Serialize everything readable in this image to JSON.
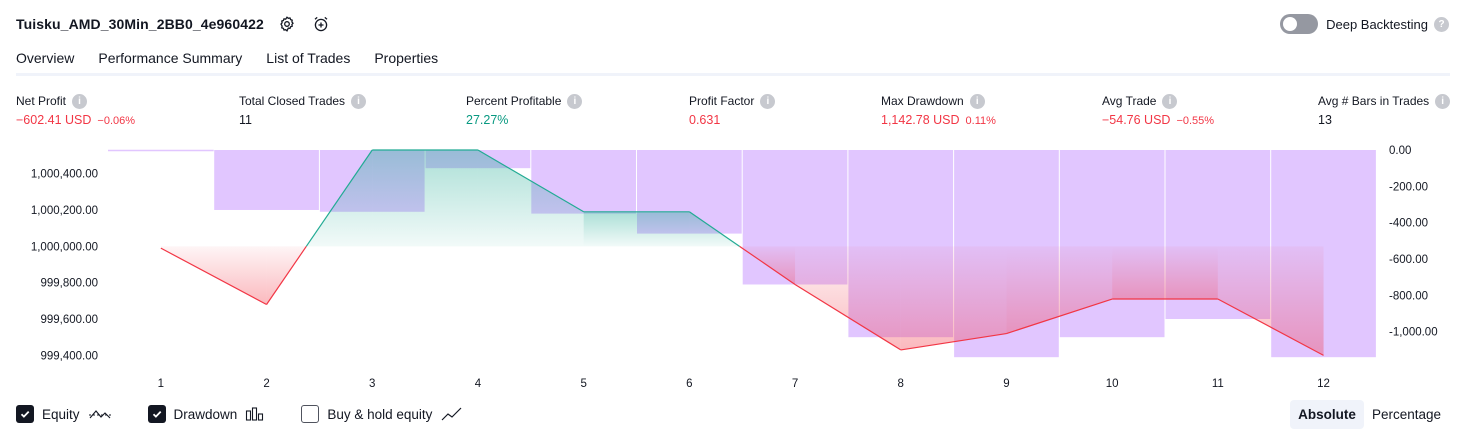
{
  "strategy": {
    "title": "Tuisku_AMD_30Min_2BB0_4e960422"
  },
  "header": {
    "settings_icon": "gear-icon",
    "alert_icon": "alarm-plus-icon"
  },
  "deep_backtesting": {
    "label": "Deep Backtesting",
    "enabled": false,
    "help": "?"
  },
  "tabs": [
    {
      "label": "Overview",
      "active": true
    },
    {
      "label": "Performance Summary",
      "active": false
    },
    {
      "label": "List of Trades",
      "active": false
    },
    {
      "label": "Properties",
      "active": false
    }
  ],
  "metrics": {
    "net_profit": {
      "label": "Net Profit",
      "value": "−602.41 USD",
      "sub": "−0.06%"
    },
    "total_closed_trades": {
      "label": "Total Closed Trades",
      "value": "11"
    },
    "percent_profitable": {
      "label": "Percent Profitable",
      "value": "27.27%"
    },
    "profit_factor": {
      "label": "Profit Factor",
      "value": "0.631"
    },
    "max_drawdown": {
      "label": "Max Drawdown",
      "value": "1,142.78 USD",
      "sub": "0.11%"
    },
    "avg_trade": {
      "label": "Avg Trade",
      "value": "−54.76 USD",
      "sub": "−0.55%"
    },
    "avg_bars": {
      "label": "Avg # Bars in Trades",
      "value": "13"
    }
  },
  "chart_data": {
    "type": "line",
    "x": [
      1,
      2,
      3,
      4,
      5,
      6,
      7,
      8,
      9,
      10,
      11,
      12
    ],
    "equity_baseline": 1000000,
    "series": [
      {
        "name": "Equity",
        "axis": "left",
        "color_up": "#22ab94",
        "color_down": "#f23645",
        "values": [
          999990,
          999680,
          1000530,
          1000530,
          1000190,
          1000190,
          999790,
          999430,
          999520,
          999710,
          999710,
          999400
        ]
      },
      {
        "name": "Drawdown",
        "axis": "right",
        "type": "bar",
        "color": "#e1c6ff",
        "values": [
          0,
          -330,
          -340,
          -100,
          -350,
          -460,
          -740,
          -1030,
          -1140,
          -1030,
          -930,
          -1140
        ]
      }
    ],
    "left_ticks": [
      "1,000,400.00",
      "1,000,200.00",
      "1,000,000.00",
      "999,800.00",
      "999,600.00",
      "999,400.00"
    ],
    "left_tick_values": [
      1000400,
      1000200,
      1000000,
      999800,
      999600,
      999400
    ],
    "right_ticks": [
      "0.00",
      "-200.00",
      "-400.00",
      "-600.00",
      "-800.00",
      "-1,000.00"
    ],
    "right_tick_values": [
      0,
      -200,
      -400,
      -600,
      -800,
      -1000
    ],
    "ylim_left": [
      999380,
      1000530
    ],
    "ylim_right": [
      -1150,
      0
    ]
  },
  "legend": [
    {
      "label": "Equity",
      "checked": true,
      "icon": "equity-line-icon"
    },
    {
      "label": "Drawdown",
      "checked": true,
      "icon": "bar-chart-icon"
    },
    {
      "label": "Buy & hold equity",
      "checked": false,
      "icon": "trend-line-icon"
    }
  ],
  "modes": [
    {
      "label": "Absolute",
      "active": true
    },
    {
      "label": "Percentage",
      "active": false
    }
  ]
}
